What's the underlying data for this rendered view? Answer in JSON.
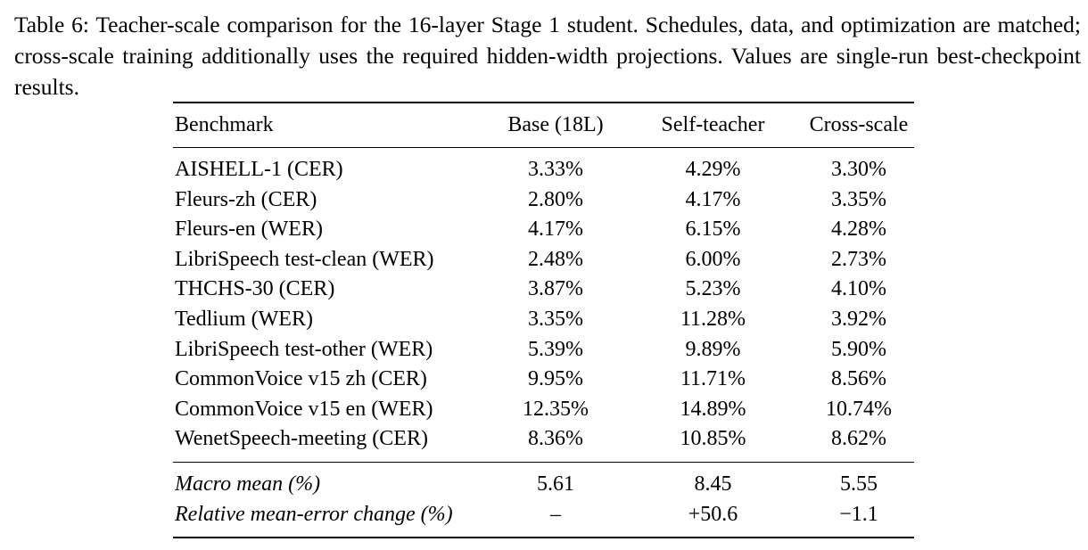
{
  "caption": "Table 6: Teacher-scale comparison for the 16-layer Stage 1 student. Schedules, data, and optimization are matched; cross-scale training additionally uses the required hidden-width projections. Values are single-run best-checkpoint results.",
  "table": {
    "headers": [
      "Benchmark",
      "Base (18L)",
      "Self-teacher",
      "Cross-scale"
    ],
    "rows": [
      {
        "benchmark": "AISHELL-1 (CER)",
        "base": "3.33%",
        "self": "4.29%",
        "cross": "3.30%",
        "best": "cross"
      },
      {
        "benchmark": "Fleurs-zh (CER)",
        "base": "2.80%",
        "self": "4.17%",
        "cross": "3.35%",
        "best": "base"
      },
      {
        "benchmark": "Fleurs-en (WER)",
        "base": "4.17%",
        "self": "6.15%",
        "cross": "4.28%",
        "best": "base"
      },
      {
        "benchmark": "LibriSpeech test-clean (WER)",
        "base": "2.48%",
        "self": "6.00%",
        "cross": "2.73%",
        "best": "base"
      },
      {
        "benchmark": "THCHS-30 (CER)",
        "base": "3.87%",
        "self": "5.23%",
        "cross": "4.10%",
        "best": "base"
      },
      {
        "benchmark": "Tedlium (WER)",
        "base": "3.35%",
        "self": "11.28%",
        "cross": "3.92%",
        "best": "base"
      },
      {
        "benchmark": "LibriSpeech test-other (WER)",
        "base": "5.39%",
        "self": "9.89%",
        "cross": "5.90%",
        "best": "base"
      },
      {
        "benchmark": "CommonVoice v15 zh (CER)",
        "base": "9.95%",
        "self": "11.71%",
        "cross": "8.56%",
        "best": "cross"
      },
      {
        "benchmark": "CommonVoice v15 en (WER)",
        "base": "12.35%",
        "self": "14.89%",
        "cross": "10.74%",
        "best": "cross"
      },
      {
        "benchmark": "WenetSpeech-meeting (CER)",
        "base": "8.36%",
        "self": "10.85%",
        "cross": "8.62%",
        "best": "base"
      }
    ],
    "summary": [
      {
        "benchmark": "Macro mean (%)",
        "base": "5.61",
        "self": "8.45",
        "cross": "5.55",
        "best": "cross"
      },
      {
        "benchmark": "Relative mean-error change (%)",
        "base": "–",
        "self": "+50.6",
        "cross": "−1.1",
        "best": ""
      }
    ]
  }
}
